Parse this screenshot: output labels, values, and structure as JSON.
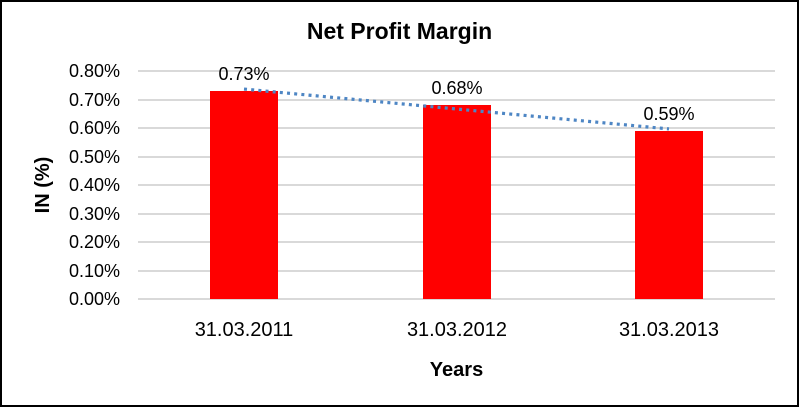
{
  "chart": {
    "title": "Net Profit Margin",
    "xlabel": "Years",
    "ylabel": "IN (%)"
  },
  "chart_data": {
    "type": "bar",
    "title": "Net Profit Margin",
    "xlabel": "Years",
    "ylabel": "IN (%)",
    "categories": [
      "31.03.2011",
      "31.03.2012",
      "31.03.2013"
    ],
    "values": [
      0.73,
      0.68,
      0.59
    ],
    "data_labels": [
      "0.73%",
      "0.68%",
      "0.59%"
    ],
    "y_ticks": [
      "0.80%",
      "0.70%",
      "0.60%",
      "0.50%",
      "0.40%",
      "0.30%",
      "0.20%",
      "0.10%",
      "0.00%"
    ],
    "ylim": [
      0,
      0.8
    ],
    "grid": true,
    "legend": "none",
    "trendline": {
      "type": "linear",
      "style": "dotted"
    },
    "colors": {
      "bar": "#ff0000",
      "trendline": "#4e86c4",
      "gridline": "#d9d9d9",
      "text": "#000000",
      "border": "#000000",
      "background": "#ffffff"
    }
  }
}
